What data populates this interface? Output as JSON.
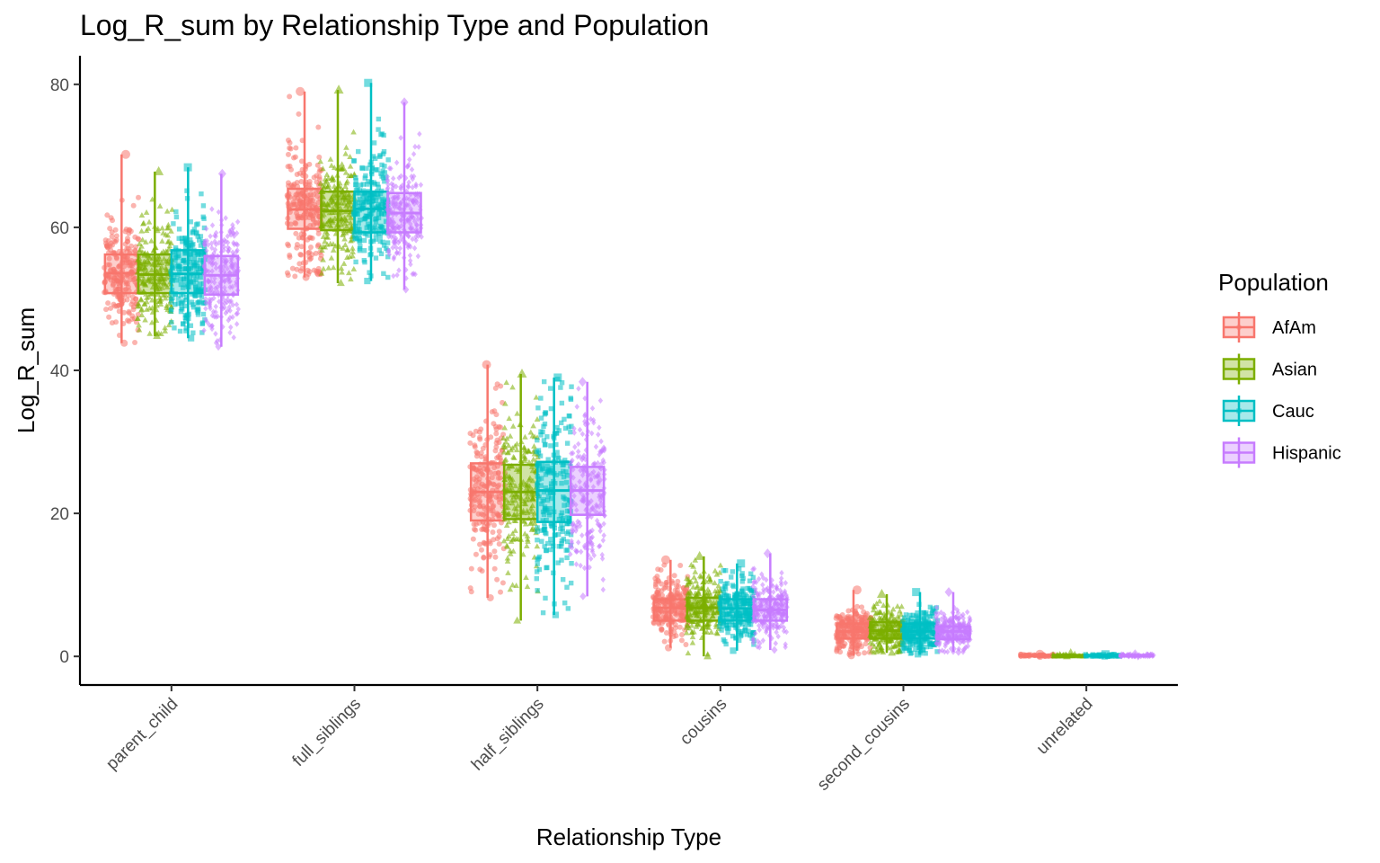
{
  "chart_data": {
    "type": "boxplot",
    "title": "Log_R_sum by Relationship Type and Population",
    "xlabel": "Relationship Type",
    "ylabel": "Log_R_sum",
    "ylim": [
      -4,
      84
    ],
    "yticks": [
      0,
      20,
      40,
      60,
      80
    ],
    "grid": false,
    "legend_title": "Population",
    "legend_position": "right",
    "categories": [
      "parent_child",
      "full_siblings",
      "half_siblings",
      "cousins",
      "second_cousins",
      "unrelated"
    ],
    "series": [
      {
        "name": "AfAm",
        "color": "#F8766D",
        "marker": "circle",
        "stats": [
          {
            "min": 43.8,
            "q1": 50.8,
            "median": 53.6,
            "q3": 56.2,
            "max": 70.2
          },
          {
            "min": 53.0,
            "q1": 59.8,
            "median": 62.5,
            "q3": 65.4,
            "max": 79.0
          },
          {
            "min": 8.2,
            "q1": 19.0,
            "median": 23.0,
            "q3": 27.0,
            "max": 40.8
          },
          {
            "min": 1.2,
            "q1": 5.0,
            "median": 6.8,
            "q3": 8.0,
            "max": 13.5
          },
          {
            "min": 0.1,
            "q1": 2.5,
            "median": 3.5,
            "q3": 4.6,
            "max": 9.3
          },
          {
            "min": 0.0,
            "q1": 0.0,
            "median": 0.1,
            "q3": 0.2,
            "max": 0.3
          }
        ]
      },
      {
        "name": "Asian",
        "color": "#7CAE00",
        "marker": "triangle",
        "stats": [
          {
            "min": 44.8,
            "q1": 50.8,
            "median": 53.4,
            "q3": 56.2,
            "max": 67.8
          },
          {
            "min": 52.2,
            "q1": 59.6,
            "median": 62.3,
            "q3": 65.0,
            "max": 79.2
          },
          {
            "min": 5.0,
            "q1": 19.2,
            "median": 23.0,
            "q3": 26.8,
            "max": 39.5
          },
          {
            "min": 0.0,
            "q1": 5.0,
            "median": 6.8,
            "q3": 8.2,
            "max": 14.0
          },
          {
            "min": 0.5,
            "q1": 2.5,
            "median": 3.6,
            "q3": 4.8,
            "max": 8.7
          },
          {
            "min": 0.0,
            "q1": 0.0,
            "median": 0.1,
            "q3": 0.2,
            "max": 0.4
          }
        ]
      },
      {
        "name": "Cauc",
        "color": "#00BFC4",
        "marker": "square",
        "stats": [
          {
            "min": 44.5,
            "q1": 50.8,
            "median": 53.5,
            "q3": 56.8,
            "max": 68.4
          },
          {
            "min": 52.5,
            "q1": 59.3,
            "median": 62.6,
            "q3": 65.0,
            "max": 80.2
          },
          {
            "min": 5.8,
            "q1": 18.8,
            "median": 23.2,
            "q3": 27.2,
            "max": 39.0
          },
          {
            "min": 0.8,
            "q1": 5.0,
            "median": 6.7,
            "q3": 8.0,
            "max": 13.0
          },
          {
            "min": 0.3,
            "q1": 2.5,
            "median": 3.5,
            "q3": 4.6,
            "max": 9.0
          },
          {
            "min": 0.0,
            "q1": 0.0,
            "median": 0.1,
            "q3": 0.2,
            "max": 0.3
          }
        ]
      },
      {
        "name": "Hispanic",
        "color": "#C77CFF",
        "marker": "diamond",
        "stats": [
          {
            "min": 43.3,
            "q1": 50.6,
            "median": 53.3,
            "q3": 56.0,
            "max": 67.5
          },
          {
            "min": 51.3,
            "q1": 59.3,
            "median": 62.0,
            "q3": 64.8,
            "max": 77.5
          },
          {
            "min": 8.4,
            "q1": 19.8,
            "median": 23.2,
            "q3": 26.5,
            "max": 38.4
          },
          {
            "min": 0.9,
            "q1": 5.0,
            "median": 6.5,
            "q3": 8.0,
            "max": 14.4
          },
          {
            "min": 0.6,
            "q1": 2.4,
            "median": 3.5,
            "q3": 4.2,
            "max": 9.0
          },
          {
            "min": 0.0,
            "q1": 0.0,
            "median": 0.1,
            "q3": 0.2,
            "max": 0.3
          }
        ]
      }
    ]
  }
}
